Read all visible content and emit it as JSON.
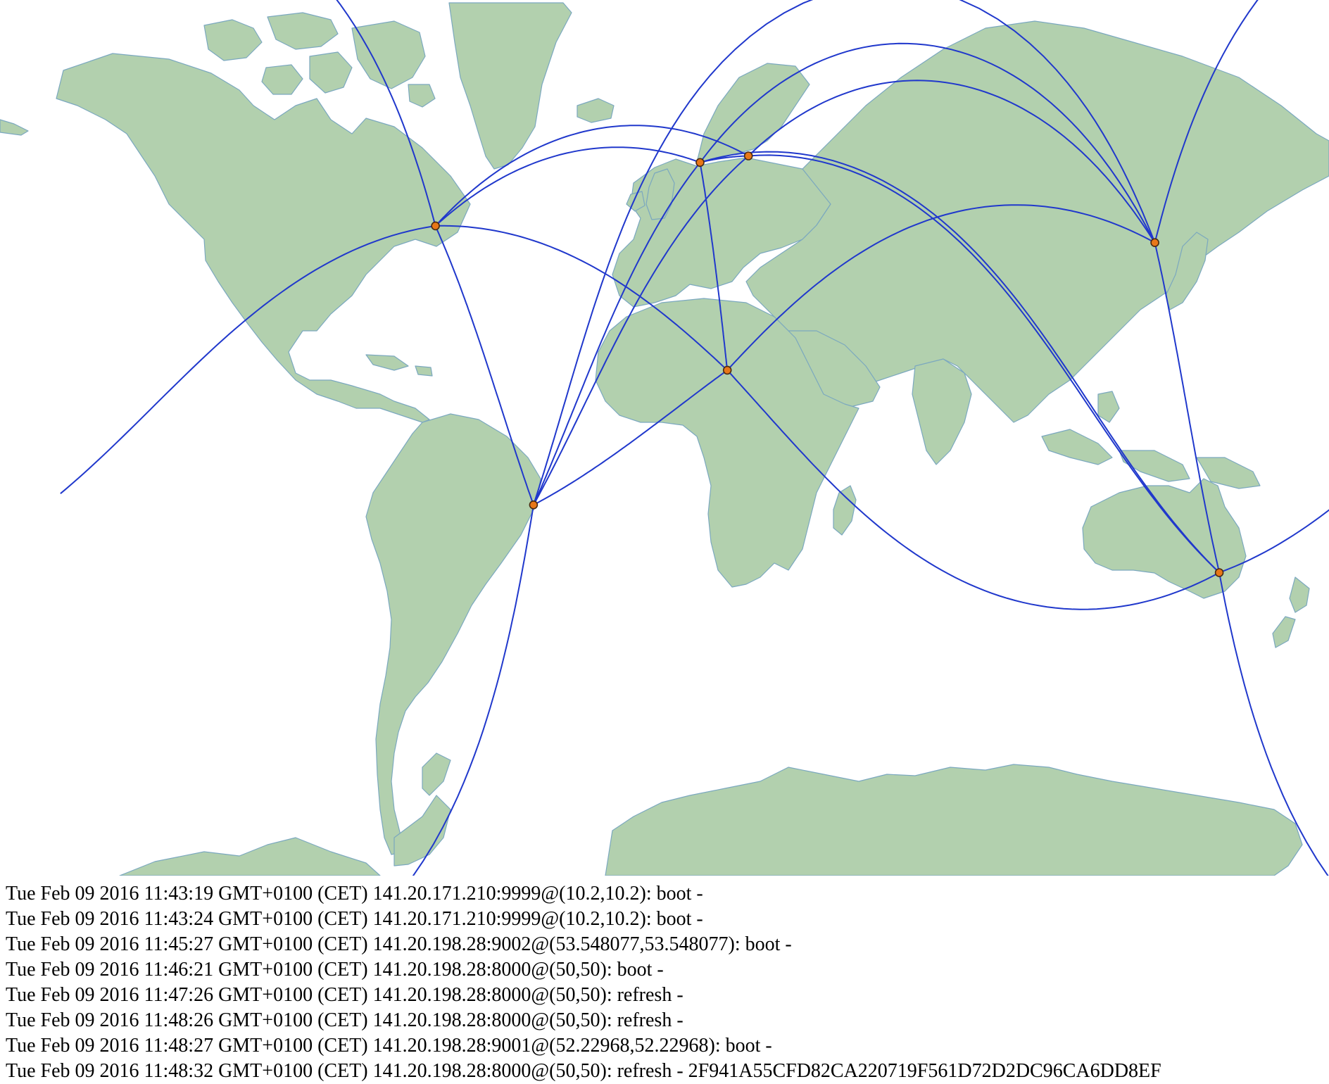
{
  "colors": {
    "land": "#b2d0ae",
    "coast": "#7ba8bf",
    "arc": "#2038cc",
    "node": "#e87718"
  },
  "map": {
    "nodes": [
      {
        "id": "new-york",
        "lon": -74.0,
        "lat": 40.7
      },
      {
        "id": "sao-paulo",
        "lon": -46.6,
        "lat": -23.5
      },
      {
        "id": "london",
        "lon": -0.1,
        "lat": 51.5
      },
      {
        "id": "berlin",
        "lon": 13.4,
        "lat": 52.5
      },
      {
        "id": "lagos",
        "lon": 7.5,
        "lat": 9.0
      },
      {
        "id": "seoul",
        "lon": 126.9,
        "lat": 37.5
      },
      {
        "id": "melbourne",
        "lon": 144.9,
        "lat": -37.8
      }
    ],
    "links": [
      [
        "new-york",
        "london"
      ],
      [
        "new-york",
        "berlin"
      ],
      [
        "new-york",
        "sao-paulo"
      ],
      [
        "new-york",
        "lagos"
      ],
      [
        "new-york",
        "seoul"
      ],
      [
        "sao-paulo",
        "london"
      ],
      [
        "sao-paulo",
        "berlin"
      ],
      [
        "sao-paulo",
        "seoul"
      ],
      [
        "sao-paulo",
        "lagos"
      ],
      [
        "sao-paulo",
        "melbourne"
      ],
      [
        "london",
        "berlin"
      ],
      [
        "london",
        "lagos"
      ],
      [
        "london",
        "seoul"
      ],
      [
        "london",
        "melbourne"
      ],
      [
        "berlin",
        "seoul"
      ],
      [
        "berlin",
        "melbourne"
      ],
      [
        "lagos",
        "melbourne"
      ],
      [
        "lagos",
        "seoul"
      ],
      [
        "seoul",
        "melbourne"
      ],
      [
        "melbourne",
        "new-york"
      ]
    ]
  },
  "log": [
    "Tue Feb 09 2016 11:43:19 GMT+0100 (CET) 141.20.171.210:9999@(10.2,10.2): boot -",
    "Tue Feb 09 2016 11:43:24 GMT+0100 (CET) 141.20.171.210:9999@(10.2,10.2): boot -",
    "Tue Feb 09 2016 11:45:27 GMT+0100 (CET) 141.20.198.28:9002@(53.548077,53.548077): boot -",
    "Tue Feb 09 2016 11:46:21 GMT+0100 (CET) 141.20.198.28:8000@(50,50): boot -",
    "Tue Feb 09 2016 11:47:26 GMT+0100 (CET) 141.20.198.28:8000@(50,50): refresh -",
    "Tue Feb 09 2016 11:48:26 GMT+0100 (CET) 141.20.198.28:8000@(50,50): refresh -",
    "Tue Feb 09 2016 11:48:27 GMT+0100 (CET) 141.20.198.28:9001@(52.22968,52.22968): boot -",
    "Tue Feb 09 2016 11:48:32 GMT+0100 (CET) 141.20.198.28:8000@(50,50): refresh - 2F941A55CFD82CA220719F561D72D2DC96CA6DD8EF"
  ]
}
